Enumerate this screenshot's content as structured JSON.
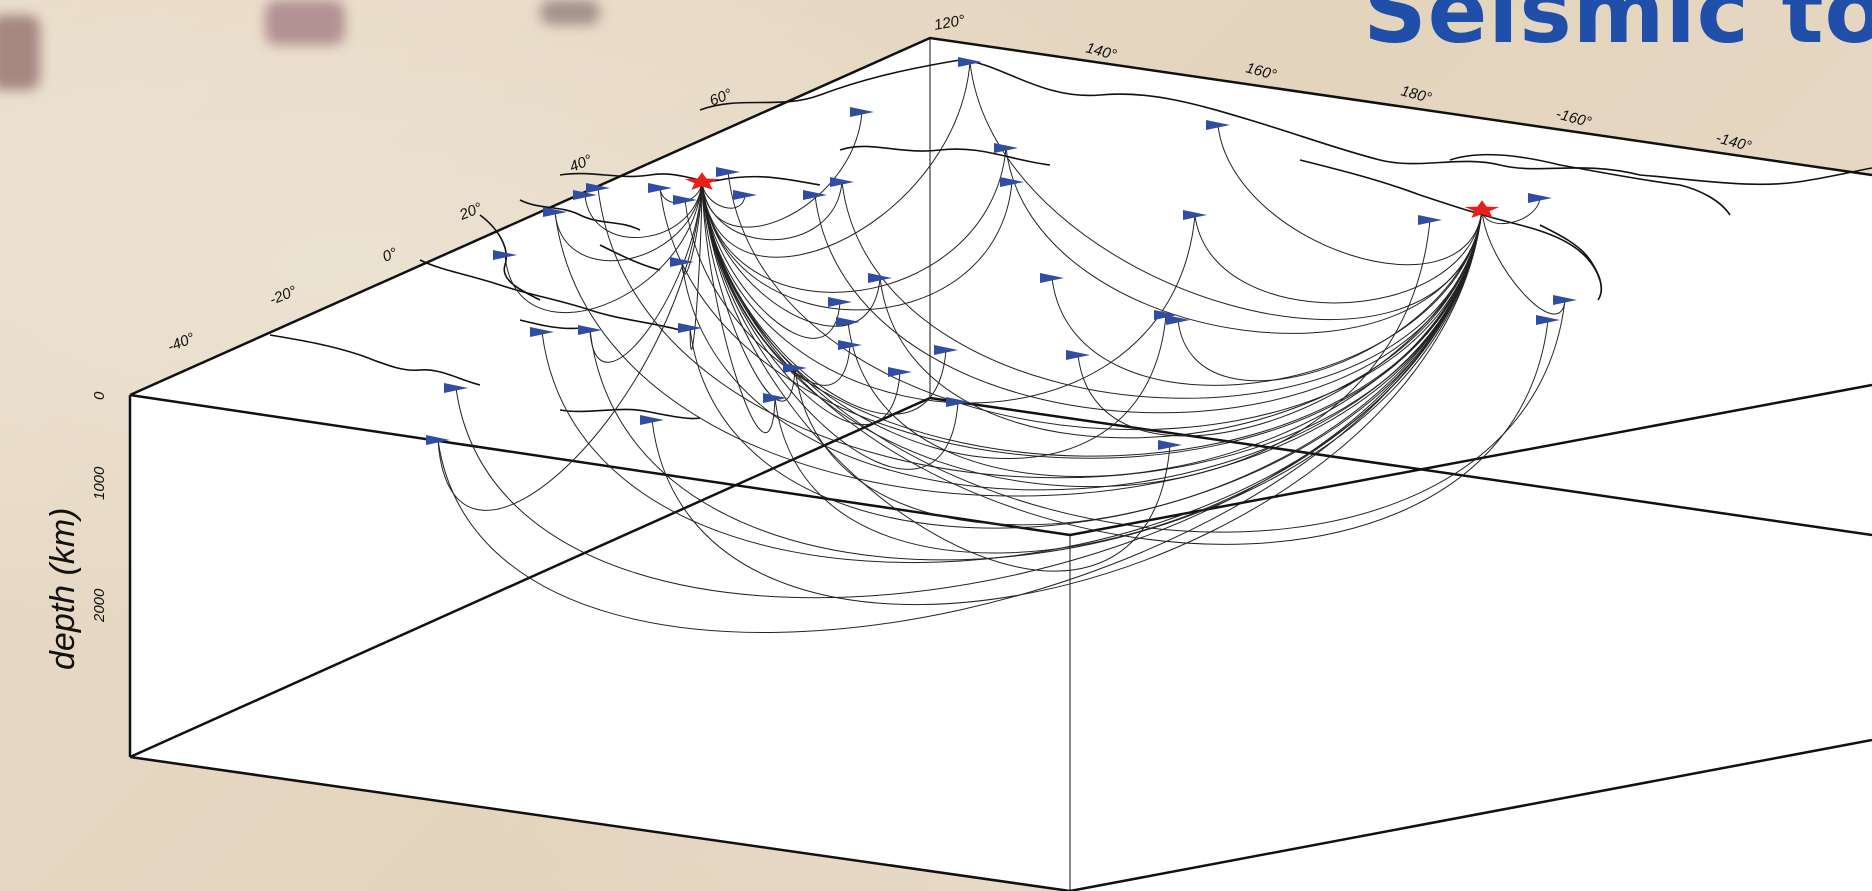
{
  "title": "Seismic to",
  "lon_labels": [
    "120°",
    "140°",
    "160°",
    "180°",
    "-160°",
    "-140°"
  ],
  "lat_labels": [
    "60°",
    "40°",
    "20°",
    "0°",
    "-20°",
    "-40°"
  ],
  "depth_axis": {
    "label": "depth (km)",
    "ticks": [
      "0",
      "1000",
      "2000"
    ]
  },
  "events": [
    {
      "name": "event-japan",
      "symbol": "star",
      "color": "#e8201c"
    },
    {
      "name": "event-aleutians",
      "symbol": "star",
      "color": "#e8201c"
    }
  ],
  "station_color": "#2f4ea3"
}
